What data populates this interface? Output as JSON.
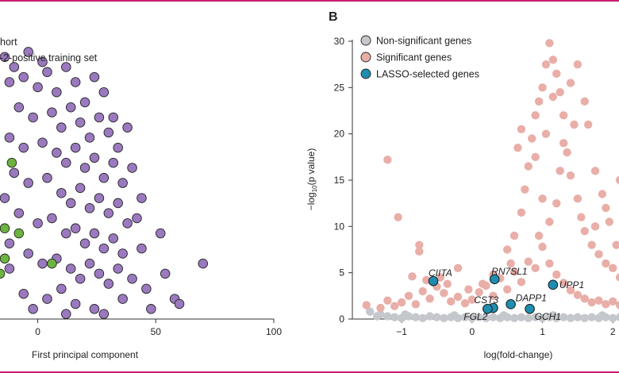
{
  "colors": {
    "frame": "#c71c6f",
    "purple": "#9b79bf",
    "green": "#6db33f",
    "nonsig": "#c4c8cc",
    "sig": "#e9aea8",
    "lasso": "#1e8db0",
    "axis": "#333333"
  },
  "panel_a": {
    "legend_line1": "hort",
    "legend_line2": "-2-positive training set",
    "xlabel": "First principal component"
  },
  "panel_b": {
    "letter": "B",
    "xlabel": "log(fold-change)",
    "legend": [
      {
        "label": "Non-significant genes",
        "color_key": "nonsig"
      },
      {
        "label": "Significant genes",
        "color_key": "sig"
      },
      {
        "label": "LASSO-selected genes",
        "color_key": "lasso"
      }
    ]
  },
  "chart_data": [
    {
      "type": "scatter",
      "title": "",
      "xlabel": "First principal component",
      "ylabel": "",
      "xlim": [
        -16,
        100
      ],
      "ylim": [
        -12,
        45
      ],
      "x_ticks": [
        0,
        50,
        100
      ],
      "x_tick_labels": [
        "0",
        "50",
        "100"
      ],
      "legend_visible": [
        "hort",
        "-2-positive training set"
      ],
      "series": [
        {
          "color_key": "purple",
          "points": [
            [
              -14,
              40
            ],
            [
              -10,
              38
            ],
            [
              -4,
              41
            ],
            [
              2,
              39
            ],
            [
              -12,
              35
            ],
            [
              -6,
              36
            ],
            [
              0,
              34
            ],
            [
              4,
              37
            ],
            [
              8,
              33
            ],
            [
              12,
              38
            ],
            [
              16,
              35
            ],
            [
              20,
              31
            ],
            [
              24,
              36
            ],
            [
              28,
              33
            ],
            [
              32,
              28
            ],
            [
              -8,
              30
            ],
            [
              -2,
              28
            ],
            [
              6,
              29
            ],
            [
              10,
              26
            ],
            [
              14,
              30
            ],
            [
              18,
              27
            ],
            [
              22,
              24
            ],
            [
              26,
              28
            ],
            [
              30,
              25
            ],
            [
              34,
              22
            ],
            [
              38,
              26
            ],
            [
              -12,
              24
            ],
            [
              -6,
              22
            ],
            [
              2,
              23
            ],
            [
              8,
              21
            ],
            [
              12,
              19
            ],
            [
              16,
              22
            ],
            [
              20,
              18
            ],
            [
              24,
              20
            ],
            [
              28,
              16
            ],
            [
              32,
              19
            ],
            [
              36,
              15
            ],
            [
              40,
              18
            ],
            [
              44,
              12
            ],
            [
              -10,
              17
            ],
            [
              -4,
              15
            ],
            [
              4,
              16
            ],
            [
              10,
              13
            ],
            [
              14,
              11
            ],
            [
              18,
              14
            ],
            [
              22,
              10
            ],
            [
              26,
              12
            ],
            [
              30,
              9
            ],
            [
              34,
              11
            ],
            [
              38,
              7
            ],
            [
              42,
              8
            ],
            [
              -8,
              9
            ],
            [
              0,
              7
            ],
            [
              6,
              8
            ],
            [
              12,
              5
            ],
            [
              16,
              6
            ],
            [
              20,
              3
            ],
            [
              24,
              5
            ],
            [
              28,
              2
            ],
            [
              32,
              4
            ],
            [
              36,
              1
            ],
            [
              44,
              2
            ],
            [
              52,
              5
            ],
            [
              -12,
              3
            ],
            [
              -4,
              1
            ],
            [
              2,
              -1
            ],
            [
              8,
              0
            ],
            [
              14,
              -2
            ],
            [
              18,
              -4
            ],
            [
              22,
              -1
            ],
            [
              26,
              -3
            ],
            [
              30,
              -5
            ],
            [
              34,
              -2
            ],
            [
              40,
              -4
            ],
            [
              46,
              -6
            ],
            [
              54,
              -3
            ],
            [
              58,
              -8
            ],
            [
              -6,
              -7
            ],
            [
              4,
              -8
            ],
            [
              10,
              -6
            ],
            [
              16,
              -9
            ],
            [
              24,
              -10
            ],
            [
              36,
              -8
            ],
            [
              48,
              -10
            ],
            [
              60,
              -9
            ],
            [
              -2,
              -10
            ],
            [
              12,
              -11
            ],
            [
              28,
              -11
            ],
            [
              70,
              -1
            ],
            [
              -14,
              12
            ],
            [
              -12,
              -2
            ]
          ]
        },
        {
          "color_key": "green",
          "points": [
            [
              -11,
              19
            ],
            [
              -14,
              6
            ],
            [
              -8,
              5
            ],
            [
              -14,
              0
            ],
            [
              -16,
              -3
            ],
            [
              6,
              -1
            ]
          ]
        }
      ]
    },
    {
      "type": "scatter",
      "title": "",
      "xlabel": "log(fold-change)",
      "ylabel": "−log10(p value)",
      "xlim": [
        -1.7,
        2.2
      ],
      "ylim": [
        0,
        30
      ],
      "x_ticks": [
        -1,
        0,
        1,
        2
      ],
      "x_tick_labels": [
        "−1",
        "0",
        "1",
        "2"
      ],
      "y_ticks": [
        0,
        5,
        10,
        15,
        20,
        25,
        30
      ],
      "y_tick_labels": [
        "0",
        "5",
        "10",
        "15",
        "20",
        "25",
        "30"
      ],
      "series": [
        {
          "name": "Non-significant genes",
          "color_key": "nonsig",
          "points": [
            [
              -1.45,
              0.8
            ],
            [
              -1.3,
              0.5
            ],
            [
              -1.2,
              0.3
            ],
            [
              -1.1,
              0.2
            ],
            [
              -1.0,
              0.1
            ],
            [
              -0.9,
              0.3
            ],
            [
              -0.8,
              0.2
            ],
            [
              -0.7,
              0.1
            ],
            [
              -0.6,
              0.3
            ],
            [
              -0.5,
              0.2
            ],
            [
              -0.4,
              0.1
            ],
            [
              -0.3,
              0.2
            ],
            [
              -0.2,
              0.1
            ],
            [
              -0.1,
              0.2
            ],
            [
              0,
              0.1
            ],
            [
              0.1,
              0.2
            ],
            [
              0.2,
              0.1
            ],
            [
              0.3,
              0.2
            ],
            [
              0.4,
              0.1
            ],
            [
              0.5,
              0.2
            ],
            [
              0.6,
              0.1
            ],
            [
              0.7,
              0.2
            ],
            [
              0.8,
              0.1
            ],
            [
              0.9,
              0.2
            ],
            [
              1.0,
              0.1
            ],
            [
              1.1,
              0.2
            ],
            [
              1.2,
              0.1
            ],
            [
              1.3,
              0.2
            ],
            [
              1.4,
              0.1
            ],
            [
              1.5,
              0.2
            ],
            [
              1.6,
              0.1
            ],
            [
              1.7,
              0.2
            ],
            [
              1.8,
              0.1
            ],
            [
              1.9,
              0.2
            ],
            [
              2.0,
              0.1
            ],
            [
              2.1,
              0.2
            ],
            [
              -1.35,
              0.3
            ],
            [
              -0.95,
              0.5
            ],
            [
              -0.25,
              0.4
            ],
            [
              0.45,
              0.4
            ],
            [
              1.15,
              0.4
            ],
            [
              1.85,
              0.4
            ]
          ]
        },
        {
          "name": "Significant genes",
          "color_key": "sig",
          "points": [
            [
              -1.5,
              1.5
            ],
            [
              -1.3,
              1.2
            ],
            [
              -1.2,
              2.0
            ],
            [
              -1.1,
              1.4
            ],
            [
              -1.0,
              1.8
            ],
            [
              -0.9,
              2.5
            ],
            [
              -0.8,
              1.6
            ],
            [
              -0.7,
              3.0
            ],
            [
              -0.6,
              2.2
            ],
            [
              -0.5,
              3.5
            ],
            [
              -0.4,
              2.8
            ],
            [
              -0.3,
              1.9
            ],
            [
              -0.2,
              2.4
            ],
            [
              -0.1,
              1.7
            ],
            [
              0,
              2.1
            ],
            [
              0.1,
              2.9
            ],
            [
              0.2,
              3.6
            ],
            [
              0.3,
              2.5
            ],
            [
              0.4,
              4.4
            ],
            [
              0.5,
              3.2
            ],
            [
              0.6,
              5.1
            ],
            [
              0.7,
              4.0
            ],
            [
              0.8,
              6.2
            ],
            [
              0.9,
              5.5
            ],
            [
              1.0,
              7.8
            ],
            [
              1.1,
              6.0
            ],
            [
              1.2,
              4.8
            ],
            [
              1.3,
              3.9
            ],
            [
              1.4,
              3.1
            ],
            [
              1.5,
              2.6
            ],
            [
              1.6,
              2.2
            ],
            [
              1.7,
              1.8
            ],
            [
              1.8,
              2.0
            ],
            [
              1.9,
              1.6
            ],
            [
              2.0,
              1.9
            ],
            [
              2.1,
              1.5
            ],
            [
              -0.75,
              8.0
            ],
            [
              -0.75,
              7.3
            ],
            [
              -1.05,
              11.0
            ],
            [
              -1.2,
              17.2
            ],
            [
              -0.45,
              4.5
            ],
            [
              -0.2,
              5.5
            ],
            [
              0.5,
              7.5
            ],
            [
              0.6,
              9.0
            ],
            [
              0.7,
              11.5
            ],
            [
              0.75,
              14.0
            ],
            [
              0.8,
              16.5
            ],
            [
              0.85,
              19.5
            ],
            [
              0.9,
              22.0
            ],
            [
              0.95,
              23.5
            ],
            [
              1.0,
              25.0
            ],
            [
              1.05,
              27.5
            ],
            [
              1.1,
              29.8
            ],
            [
              1.15,
              28.0
            ],
            [
              1.2,
              26.5
            ],
            [
              1.25,
              24.5
            ],
            [
              1.3,
              22.0
            ],
            [
              1.35,
              18.0
            ],
            [
              1.4,
              15.5
            ],
            [
              1.5,
              13.0
            ],
            [
              1.55,
              11.0
            ],
            [
              1.6,
              9.5
            ],
            [
              1.7,
              8.0
            ],
            [
              1.8,
              7.0
            ],
            [
              1.9,
              6.0
            ],
            [
              2.0,
              5.5
            ],
            [
              2.1,
              4.5
            ],
            [
              1.5,
              27.5
            ],
            [
              1.6,
              23.5
            ],
            [
              1.65,
              21.0
            ],
            [
              1.75,
              16.0
            ],
            [
              1.85,
              13.5
            ],
            [
              1.95,
              10.5
            ],
            [
              2.05,
              8.0
            ],
            [
              2.15,
              6.5
            ],
            [
              0.65,
              18.5
            ],
            [
              0.7,
              20.5
            ],
            [
              0.9,
              17.5
            ],
            [
              1.0,
              13.0
            ],
            [
              1.1,
              10.5
            ],
            [
              1.2,
              12.5
            ],
            [
              1.25,
              16.0
            ],
            [
              1.3,
              19.0
            ],
            [
              1.45,
              21.0
            ],
            [
              0.95,
              9.0
            ],
            [
              0.55,
              6.0
            ],
            [
              0.3,
              4.8
            ],
            [
              0.15,
              3.8
            ],
            [
              -0.05,
              3.2
            ],
            [
              -0.35,
              3.8
            ],
            [
              -0.65,
              4.2
            ],
            [
              -0.85,
              4.6
            ],
            [
              1.05,
              20.0
            ],
            [
              1.15,
              24.0
            ],
            [
              1.4,
              25.5
            ],
            [
              2.15,
              21.0
            ],
            [
              2.1,
              15.0
            ],
            [
              1.9,
              12.0
            ],
            [
              1.75,
              10.0
            ]
          ]
        },
        {
          "name": "LASSO-selected genes",
          "color_key": "lasso",
          "points": [
            {
              "x": -0.55,
              "y": 4.1,
              "label": "CIITA"
            },
            {
              "x": 0.32,
              "y": 4.3,
              "label": "RN7SL1"
            },
            {
              "x": 1.15,
              "y": 3.7,
              "label": "UPP1"
            },
            {
              "x": 0.55,
              "y": 1.6,
              "label": "DAPP1"
            },
            {
              "x": 0.3,
              "y": 1.2,
              "label": "CST3"
            },
            {
              "x": 0.22,
              "y": 1.1,
              "label": "FGL2"
            },
            {
              "x": 0.82,
              "y": 1.1,
              "label": "GCH1"
            }
          ]
        }
      ]
    }
  ]
}
